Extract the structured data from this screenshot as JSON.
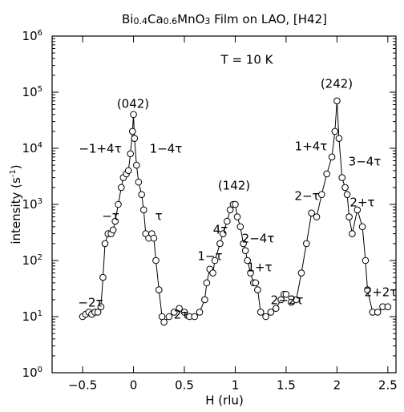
{
  "chart_data": {
    "type": "scatter",
    "title_parts": [
      {
        "text": "Bi"
      },
      {
        "text": "0.4",
        "sub": true
      },
      {
        "text": "Ca"
      },
      {
        "text": "0.6",
        "sub": true
      },
      {
        "text": "MnO"
      },
      {
        "text": "3",
        "sub": true
      },
      {
        "text": " Film on LAO, [H42]"
      }
    ],
    "ylabel_parts": [
      {
        "text": "intensity (s"
      },
      {
        "text": "-1",
        "sup": true
      },
      {
        "text": ")"
      }
    ],
    "xlabel": "H (rlu)",
    "annotations": [
      "T = 10 K",
      "(042)",
      "(142)",
      "(242)",
      "−1+4τ",
      "1−4τ",
      "−τ",
      "τ",
      "−2τ",
      "2τ",
      "1−τ",
      "4τ",
      "2−4τ",
      "1+τ",
      "2−2τ",
      "1+4τ",
      "2−τ",
      "3−4τ",
      "2+τ",
      "2+2τ"
    ],
    "x": [
      -0.5,
      -0.47,
      -0.44,
      -0.41,
      -0.38,
      -0.35,
      -0.32,
      -0.3,
      -0.28,
      -0.25,
      -0.22,
      -0.2,
      -0.18,
      -0.15,
      -0.12,
      -0.1,
      -0.07,
      -0.05,
      -0.03,
      -0.01,
      0,
      0.01,
      0.03,
      0.05,
      0.08,
      0.1,
      0.12,
      0.15,
      0.18,
      0.2,
      0.22,
      0.25,
      0.28,
      0.3,
      0.35,
      0.4,
      0.45,
      0.5,
      0.55,
      0.6,
      0.65,
      0.7,
      0.72,
      0.75,
      0.78,
      0.8,
      0.85,
      0.88,
      0.92,
      0.95,
      0.98,
      1.0,
      1.02,
      1.05,
      1.08,
      1.1,
      1.12,
      1.15,
      1.18,
      1.2,
      1.22,
      1.25,
      1.3,
      1.35,
      1.4,
      1.45,
      1.48,
      1.5,
      1.55,
      1.6,
      1.65,
      1.7,
      1.75,
      1.8,
      1.85,
      1.9,
      1.95,
      1.98,
      2.0,
      2.02,
      2.05,
      2.08,
      2.1,
      2.12,
      2.15,
      2.2,
      2.25,
      2.28,
      2.3,
      2.35,
      2.4,
      2.45,
      2.5
    ],
    "values": [
      10,
      11,
      12,
      11,
      12,
      12,
      15,
      50,
      200,
      300,
      300,
      350,
      500,
      1000,
      2000,
      3000,
      3500,
      4000,
      8000,
      20000,
      40000,
      15000,
      5000,
      2500,
      1500,
      800,
      300,
      250,
      300,
      250,
      100,
      30,
      10,
      8,
      10,
      12,
      14,
      12,
      10,
      10,
      12,
      20,
      40,
      70,
      60,
      100,
      200,
      300,
      500,
      800,
      1000,
      1000,
      600,
      400,
      200,
      150,
      100,
      60,
      40,
      40,
      30,
      12,
      10,
      12,
      14,
      20,
      25,
      25,
      18,
      20,
      60,
      200,
      700,
      600,
      1500,
      3500,
      7000,
      20000,
      70000,
      15000,
      3000,
      2000,
      1500,
      600,
      300,
      800,
      400,
      100,
      30,
      12,
      12,
      15,
      15
    ],
    "color": "#000000",
    "log_y": true,
    "xlim": [
      -0.8,
      2.58
    ],
    "xticks": [
      {
        "value": -0.5,
        "label": "−0.5"
      },
      0,
      0.5,
      1,
      1.5,
      2,
      2.5
    ],
    "ylim": [
      1,
      1000000
    ],
    "yticks": [
      {
        "value": 1,
        "label": "10",
        "exponent": "0"
      },
      {
        "value": 10,
        "label": "10",
        "exponent": "1"
      },
      {
        "value": 100,
        "label": "10",
        "exponent": "2"
      },
      {
        "value": 1000,
        "label": "10",
        "exponent": "3"
      },
      {
        "value": 10000,
        "label": "10",
        "exponent": "4"
      },
      {
        "value": 100000,
        "label": "10",
        "exponent": "5"
      },
      {
        "value": 1000000,
        "label": "10",
        "exponent": "6"
      }
    ]
  }
}
